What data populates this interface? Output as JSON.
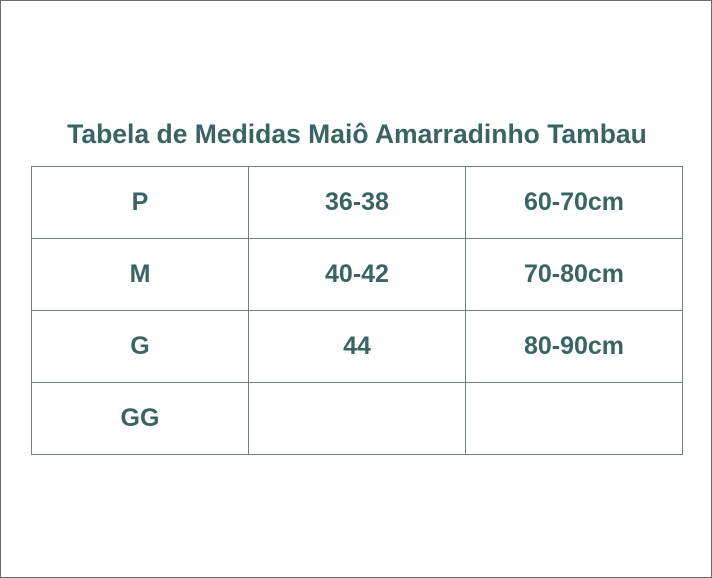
{
  "title": "Tabela de Medidas Maiô Amarradinho Tambau",
  "colors": {
    "text": "#3a6464",
    "border": "#6f8585"
  },
  "table": {
    "rows": [
      [
        "P",
        "36-38",
        "60-70cm"
      ],
      [
        "M",
        "40-42",
        "70-80cm"
      ],
      [
        "G",
        "44",
        "80-90cm"
      ],
      [
        "GG",
        "",
        ""
      ]
    ]
  }
}
